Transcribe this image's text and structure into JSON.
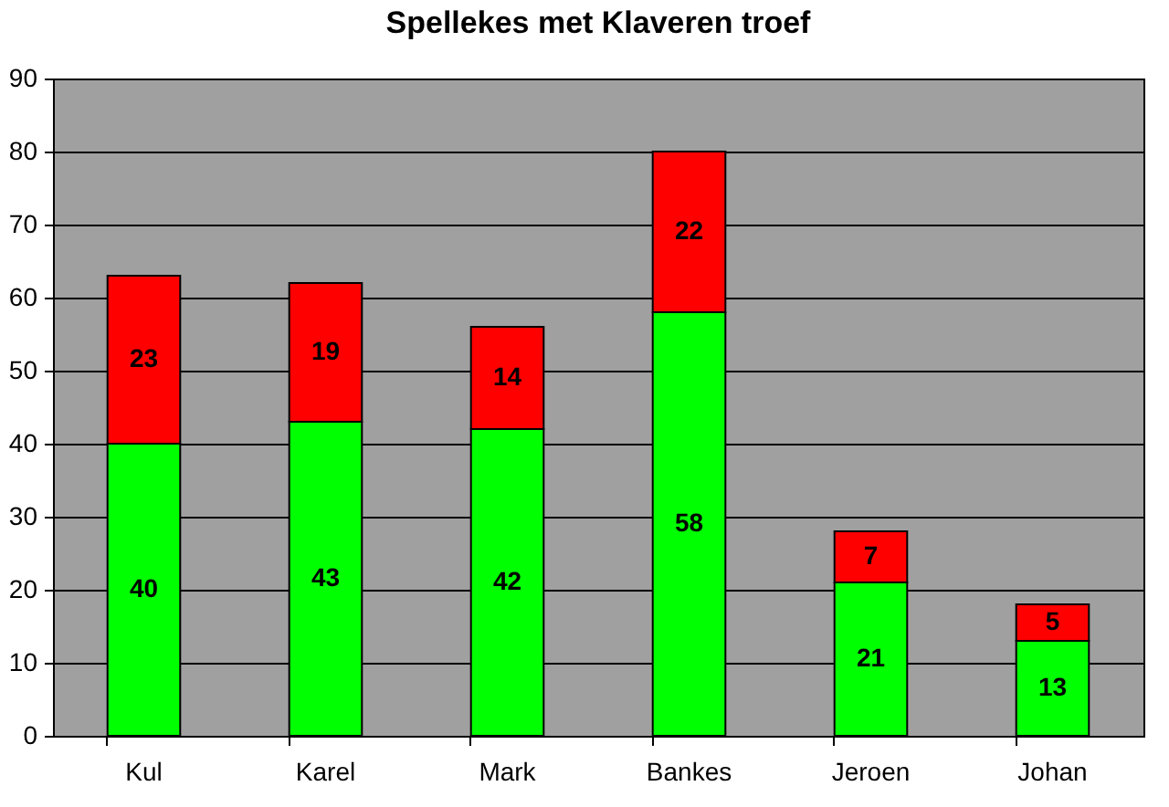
{
  "chart_data": {
    "type": "bar",
    "title": "Spellekes met Klaveren troef",
    "categories": [
      "Kul",
      "Karel",
      "Mark",
      "Bankes",
      "Jeroen",
      "Johan"
    ],
    "series": [
      {
        "color": "#00ff00",
        "values": [
          40,
          43,
          42,
          58,
          21,
          13
        ]
      },
      {
        "color": "#ff0000",
        "values": [
          23,
          19,
          14,
          22,
          7,
          5
        ]
      }
    ],
    "stacked": true,
    "data_labels": true,
    "ylim": [
      0,
      90
    ],
    "yticks": [
      0,
      10,
      20,
      30,
      40,
      50,
      60,
      70,
      80,
      90
    ],
    "grid": "y"
  }
}
